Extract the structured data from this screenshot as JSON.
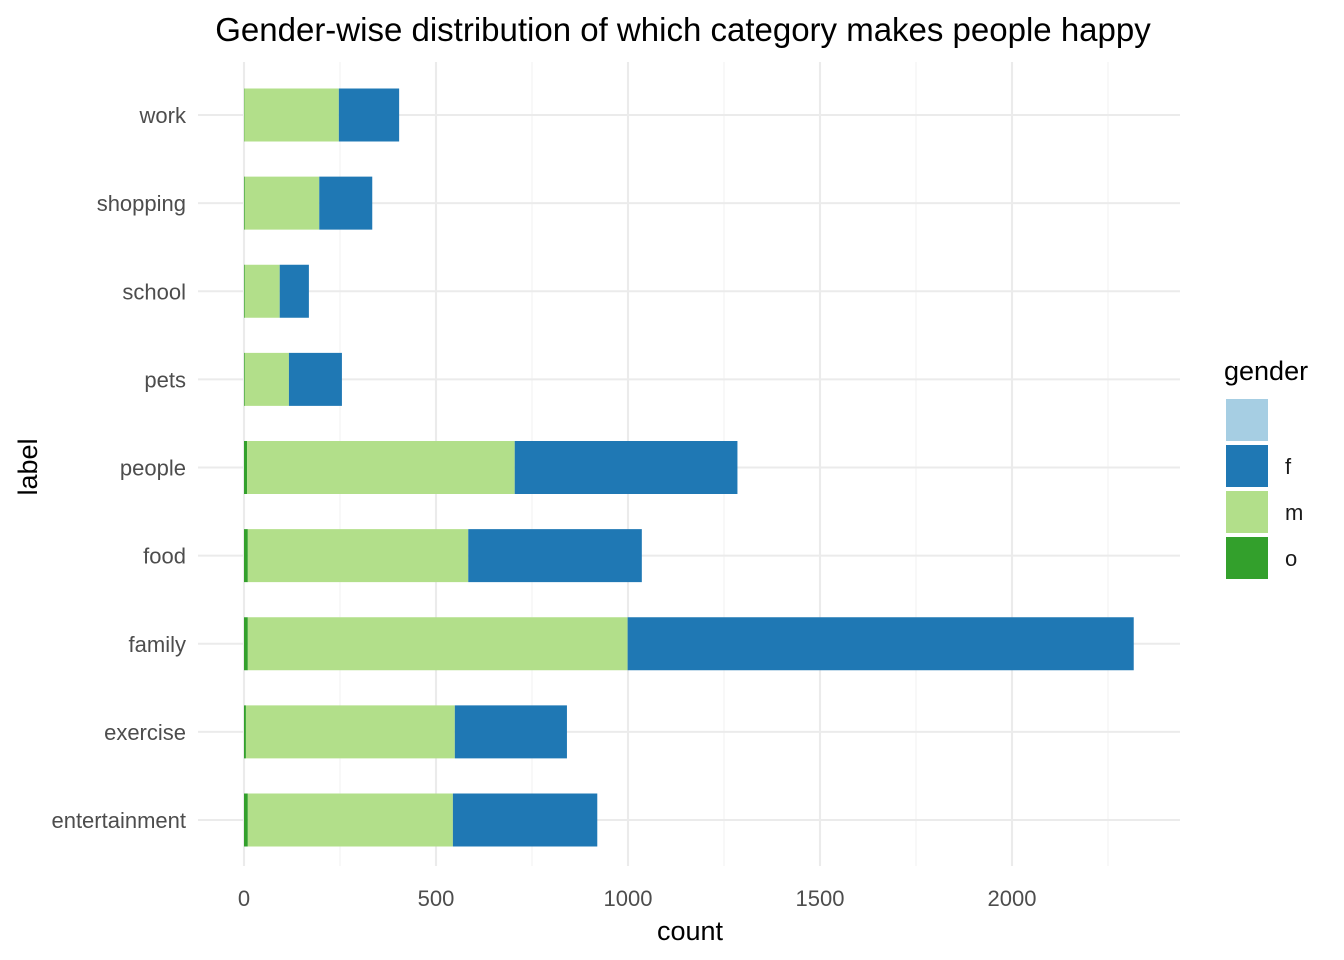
{
  "chart_data": {
    "type": "bar",
    "orientation": "horizontal",
    "stacked": true,
    "title": "Gender-wise distribution of which category makes people happy",
    "xlabel": "count",
    "ylabel": "label",
    "xlim": [
      0,
      2430
    ],
    "xticks": [
      0,
      500,
      1000,
      1500,
      2000
    ],
    "xtick_labels": [
      "0",
      "500",
      "1000",
      "1500",
      "2000"
    ],
    "categories": [
      "entertainment",
      "exercise",
      "family",
      "food",
      "people",
      "pets",
      "school",
      "shopping",
      "work"
    ],
    "series": [
      {
        "name": "",
        "color": "#a6cee3",
        "values": [
          0,
          0,
          0,
          0,
          0,
          0,
          0,
          0,
          0
        ]
      },
      {
        "name": "o",
        "color": "#33a02c",
        "values": [
          10,
          5,
          10,
          10,
          8,
          2,
          2,
          2,
          1
        ]
      },
      {
        "name": "m",
        "color": "#b2df8a",
        "values": [
          534,
          544,
          989,
          574,
          697,
          115,
          91,
          194,
          246
        ]
      },
      {
        "name": "f",
        "color": "#1f78b4",
        "values": [
          376,
          292,
          1318,
          452,
          580,
          138,
          76,
          138,
          157
        ]
      }
    ],
    "legend": {
      "title": "gender",
      "position": "right",
      "items": [
        {
          "label": "",
          "color": "#a6cee3"
        },
        {
          "label": "f",
          "color": "#1f78b4"
        },
        {
          "label": "m",
          "color": "#b2df8a"
        },
        {
          "label": "o",
          "color": "#33a02c"
        }
      ]
    },
    "grid": true
  }
}
